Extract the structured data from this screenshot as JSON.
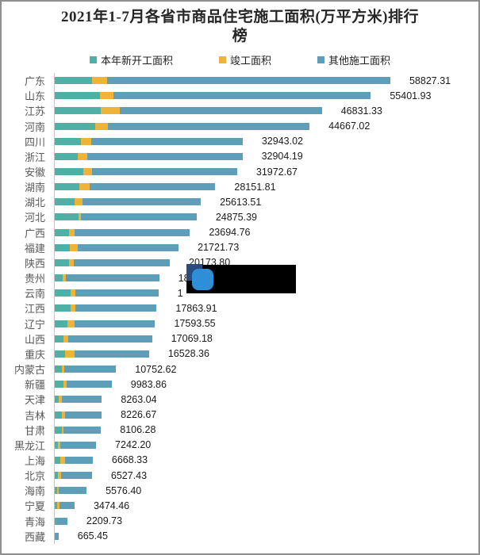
{
  "title": "2021年1-7月各省市商品住宅施工面积(万平方米)排行榜",
  "title_lines": [
    "2021年1-7月各省市商品住宅施工面积(万平方米)排行",
    "榜"
  ],
  "legend": [
    {
      "label": "本年新开工面积",
      "color": "#4fb0a5"
    },
    {
      "label": "竣工面积",
      "color": "#eeb43a"
    },
    {
      "label": "其他施工面积",
      "color": "#5f9eb9"
    }
  ],
  "colors": {
    "title_text": "#262626",
    "category_text": "#595959",
    "value_text": "#1a1a1a",
    "axis_line": "#c6c6c6",
    "frame_border": "#8f8f8f",
    "background": "#ffffff",
    "redaction_box": "#000000",
    "logo_navy": "#2b4a7e",
    "logo_blue": "#2e8fd8"
  },
  "chart_data": {
    "type": "bar",
    "orientation": "horizontal",
    "stacked": true,
    "unit": "万平方米",
    "xlim": [
      0,
      63000
    ],
    "grid": false,
    "legend_position": "top",
    "categories": [
      "广东",
      "山东",
      "江苏",
      "河南",
      "四川",
      "浙江",
      "安徽",
      "湖南",
      "湖北",
      "河北",
      "广西",
      "福建",
      "陕西",
      "贵州",
      "云南",
      "江西",
      "辽宁",
      "山西",
      "重庆",
      "内蒙古",
      "新疆",
      "天津",
      "吉林",
      "甘肃",
      "黑龙江",
      "上海",
      "北京",
      "海南",
      "宁夏",
      "青海",
      "西藏"
    ],
    "value_labels": [
      "58827.31",
      "55401.93",
      "46831.33",
      "44667.02",
      "32943.02",
      "32904.19",
      "31972.67",
      "28151.81",
      "25613.51",
      "24875.39",
      "23694.76",
      "21721.73",
      "20173.80",
      "18",
      "1",
      "17863.91",
      "17593.55",
      "17069.18",
      "16528.36",
      "10752.62",
      "9983.86",
      "8263.04",
      "8226.67",
      "8106.28",
      "7242.20",
      "6668.33",
      "6527.43",
      "5576.40",
      "3474.46",
      "2209.73",
      "665.45"
    ],
    "totals": [
      58827.31,
      55401.93,
      46831.33,
      44667.02,
      32943.02,
      32904.19,
      31972.67,
      28151.81,
      25613.51,
      24875.39,
      23694.76,
      21721.73,
      20173.8,
      18310,
      18170,
      17863.91,
      17593.55,
      17069.18,
      16528.36,
      10752.62,
      9983.86,
      8263.04,
      8226.67,
      8106.28,
      7242.2,
      6668.33,
      6527.43,
      5576.4,
      3474.46,
      2209.73,
      665.45
    ],
    "series": [
      {
        "name": "本年新开工面积",
        "values": [
          6550,
          7950,
          8000,
          7130,
          4590,
          3990,
          5050,
          4350,
          3430,
          4130,
          2500,
          2640,
          2540,
          1430,
          2740,
          2740,
          2220,
          1570,
          1850,
          1210,
          1490,
          650,
          1210,
          1290,
          560,
          930,
          560,
          380,
          460,
          460,
          0
        ]
      },
      {
        "name": "竣工面积",
        "values": [
          2600,
          2350,
          3430,
          2220,
          1770,
          1770,
          1530,
          1770,
          1390,
          460,
          930,
          1390,
          740,
          510,
          830,
          930,
          1210,
          740,
          1570,
          460,
          560,
          650,
          650,
          280,
          420,
          830,
          560,
          280,
          380,
          0,
          0
        ]
      },
      {
        "name": "其他施工面积",
        "values": [
          49677.31,
          45101.93,
          35401.33,
          35317.02,
          26583.02,
          27144.19,
          25392.67,
          22031.81,
          20793.51,
          20285.39,
          20264.76,
          17691.73,
          16893.8,
          16370,
          14600,
          14193.91,
          14163.55,
          14759.18,
          13108.36,
          9082.62,
          7933.86,
          6963.04,
          6366.67,
          6536.28,
          6262.2,
          4908.33,
          5407.43,
          4916.4,
          2634.46,
          1749.73,
          665.45
        ]
      }
    ],
    "annotations": [
      "black redaction box with blue logo covering 贵州 and 云南 value labels"
    ]
  }
}
